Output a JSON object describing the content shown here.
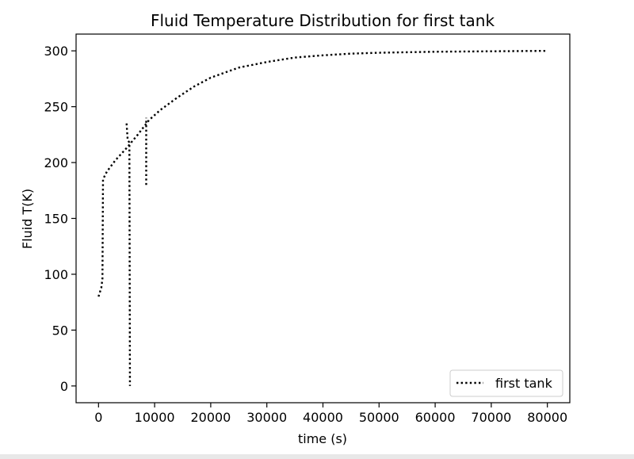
{
  "chart_data": {
    "type": "line",
    "title": "Fluid Temperature Distribution for first tank",
    "xlabel": "time (s)",
    "ylabel": "Fluid T(K)",
    "xlim": [
      -4000,
      84000
    ],
    "ylim": [
      -15,
      315
    ],
    "xticks": [
      0,
      10000,
      20000,
      30000,
      40000,
      50000,
      60000,
      70000,
      80000
    ],
    "xtick_labels": [
      "0",
      "10000",
      "20000",
      "30000",
      "40000",
      "50000",
      "60000",
      "70000",
      "80000"
    ],
    "yticks": [
      0,
      50,
      100,
      150,
      200,
      250,
      300
    ],
    "ytick_labels": [
      "0",
      "50",
      "100",
      "150",
      "200",
      "250",
      "300"
    ],
    "grid": false,
    "legend_position": "lower-right",
    "series": [
      {
        "name": "first tank",
        "color": "#000000",
        "linestyle": "dotted",
        "segments": [
          [
            [
              0,
              80
            ],
            [
              500,
              88
            ],
            [
              700,
              96
            ],
            [
              800,
              185
            ],
            [
              1500,
              192
            ],
            [
              3000,
              202
            ],
            [
              5000,
              213
            ],
            [
              7000,
              225
            ],
            [
              9000,
              238
            ],
            [
              11000,
              247
            ],
            [
              14000,
              258
            ],
            [
              17000,
              268
            ],
            [
              20000,
              276
            ],
            [
              25000,
              285
            ],
            [
              30000,
              290
            ],
            [
              35000,
              294
            ],
            [
              40000,
              296
            ],
            [
              45000,
              297.5
            ],
            [
              50000,
              298.3
            ],
            [
              60000,
              299.2
            ],
            [
              70000,
              299.6
            ],
            [
              80000,
              300
            ]
          ],
          [
            [
              5000,
              235
            ],
            [
              5200,
              220
            ],
            [
              5500,
              218
            ],
            [
              5600,
              0
            ]
          ],
          [
            [
              8500,
              180
            ],
            [
              8500,
              240
            ]
          ]
        ]
      }
    ]
  }
}
